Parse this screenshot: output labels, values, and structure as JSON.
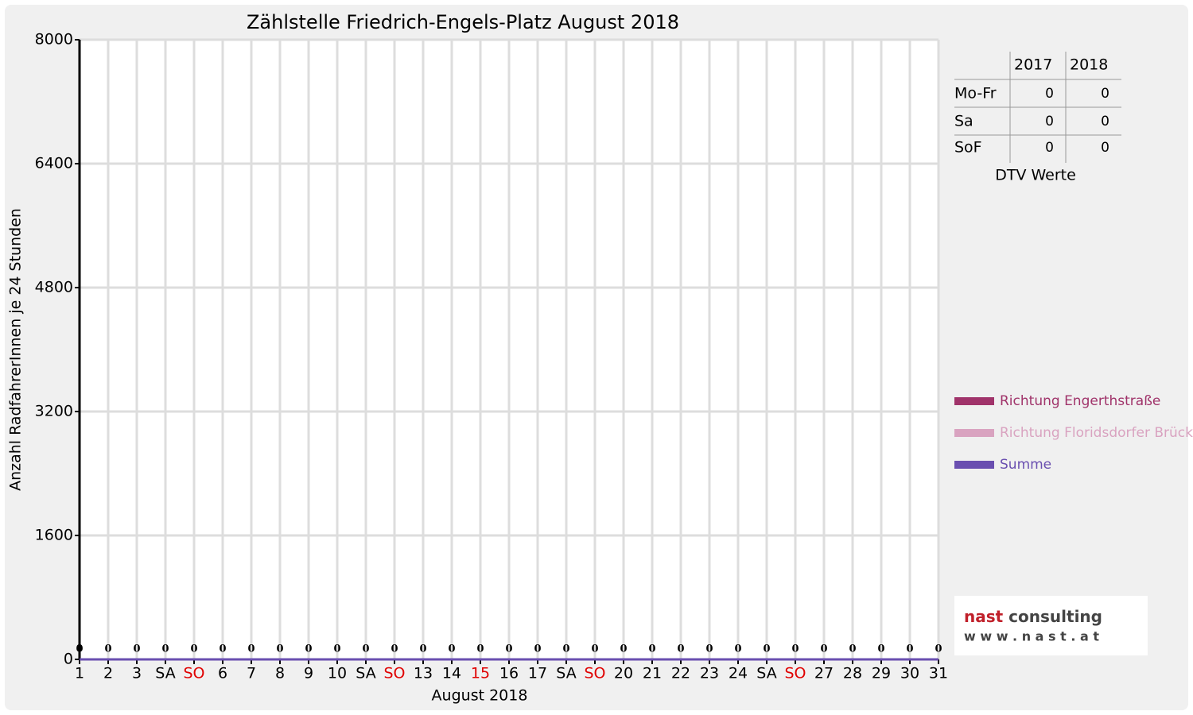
{
  "chart_data": {
    "type": "line",
    "title": "Zählstelle Friedrich-Engels-Platz August 2018",
    "x_label": "August 2018",
    "y_label": "Anzahl RadfahrerInnen je 24 Stunden",
    "categories": [
      "1",
      "2",
      "3",
      "SA",
      "SO",
      "6",
      "7",
      "8",
      "9",
      "10",
      "SA",
      "SO",
      "13",
      "14",
      "15",
      "16",
      "17",
      "SA",
      "SO",
      "20",
      "21",
      "22",
      "23",
      "24",
      "SA",
      "SO",
      "27",
      "28",
      "29",
      "30",
      "31"
    ],
    "category_colors": [
      "#000",
      "#000",
      "#000",
      "#000",
      "#e00000",
      "#000",
      "#000",
      "#000",
      "#000",
      "#000",
      "#000",
      "#e00000",
      "#000",
      "#000",
      "#e00000",
      "#000",
      "#000",
      "#000",
      "#e00000",
      "#000",
      "#000",
      "#000",
      "#000",
      "#000",
      "#000",
      "#e00000",
      "#000",
      "#000",
      "#000",
      "#000",
      "#000"
    ],
    "series": [
      {
        "name": "Richtung Engerthstraße",
        "color": "#a0336a",
        "values": [
          0,
          0,
          0,
          0,
          0,
          0,
          0,
          0,
          0,
          0,
          0,
          0,
          0,
          0,
          0,
          0,
          0,
          0,
          0,
          0,
          0,
          0,
          0,
          0,
          0,
          0,
          0,
          0,
          0,
          0,
          0
        ]
      },
      {
        "name": "Richtung Floridsdorfer Brücke",
        "color": "#d9a3c0",
        "values": [
          0,
          0,
          0,
          0,
          0,
          0,
          0,
          0,
          0,
          0,
          0,
          0,
          0,
          0,
          0,
          0,
          0,
          0,
          0,
          0,
          0,
          0,
          0,
          0,
          0,
          0,
          0,
          0,
          0,
          0,
          0
        ]
      },
      {
        "name": "Summe",
        "color": "#6a4fb0",
        "values": [
          0,
          0,
          0,
          0,
          0,
          0,
          0,
          0,
          0,
          0,
          0,
          0,
          0,
          0,
          0,
          0,
          0,
          0,
          0,
          0,
          0,
          0,
          0,
          0,
          0,
          0,
          0,
          0,
          0,
          0,
          0
        ]
      }
    ],
    "ylim": [
      0,
      8000
    ],
    "yticks": [
      0,
      1600,
      3200,
      4800,
      6400,
      8000
    ],
    "grid": true
  },
  "dtv_table": {
    "columns": [
      "2017",
      "2018"
    ],
    "rows": [
      {
        "label": "Mo-Fr",
        "values": [
          0,
          0
        ]
      },
      {
        "label": "Sa",
        "values": [
          0,
          0
        ]
      },
      {
        "label": "SoF",
        "values": [
          0,
          0
        ]
      }
    ],
    "caption": "DTV Werte"
  },
  "logo": {
    "brand": "nast",
    "name": "consulting",
    "url": "w w w . n a s t . a t"
  }
}
